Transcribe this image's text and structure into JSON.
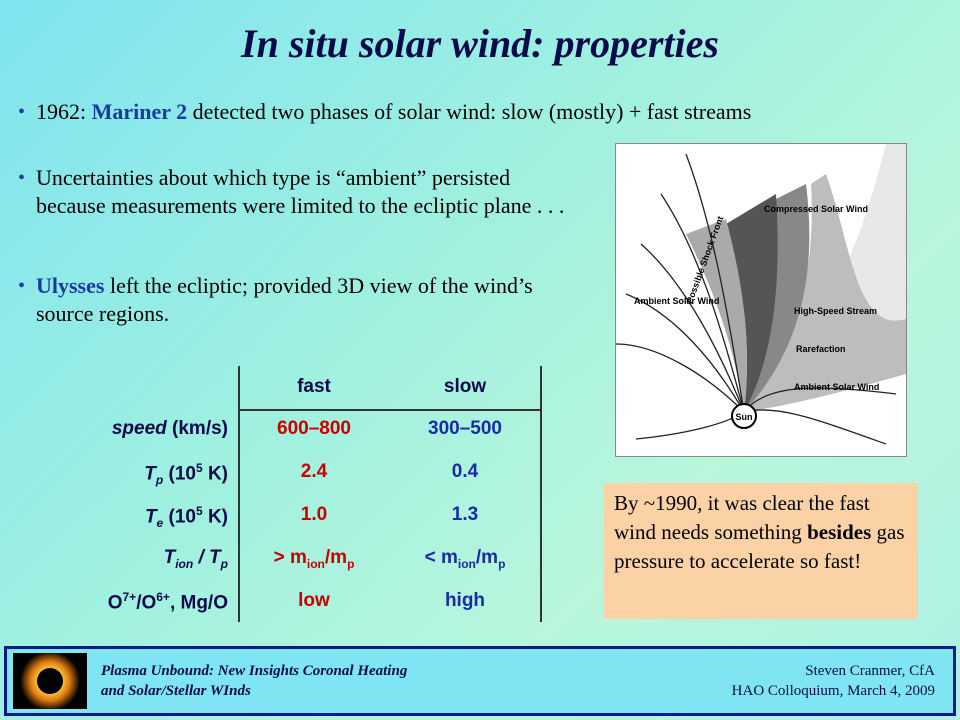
{
  "title": "In situ solar wind: properties",
  "bullets": {
    "b1_pre": "1962: ",
    "b1_highlight": "Mariner 2",
    "b1_post": " detected two phases of solar wind:  slow (mostly) + fast streams",
    "b2": "Uncertainties about which type is “ambient” persisted because measurements were limited to the ecliptic plane . . .",
    "b3_highlight": "Ulysses",
    "b3_post": " left the ecliptic; provided 3D view of the wind’s source regions."
  },
  "table": {
    "col_fast": "fast",
    "col_slow": "slow",
    "rows": [
      {
        "label_main": "speed",
        "label_unit": "  (km/s)",
        "fast": "600–800",
        "slow": "300–500"
      },
      {
        "label_main": "T",
        "label_sub": "p",
        "label_unit": "  (10",
        "label_sup": "5",
        "label_end": " K)",
        "fast": "2.4",
        "slow": "0.4"
      },
      {
        "label_main": "T",
        "label_sub": "e",
        "label_unit": "  (10",
        "label_sup": "5",
        "label_end": " K)",
        "fast": "1.0",
        "slow": "1.3"
      },
      {
        "label_main": "T",
        "label_sub": "ion",
        "label_mid": " / T",
        "label_sub2": "p",
        "fast_pre": "> m",
        "fast_sub": "ion",
        "fast_mid": "/m",
        "fast_sub2": "p",
        "slow_pre": "< m",
        "slow_sub": "ion",
        "slow_mid": "/m",
        "slow_sub2": "p"
      },
      {
        "label_o": "O",
        "label_sup1": "7+",
        "label_mid": "/O",
        "label_sup2": "6+",
        "label_end": ", Mg/O",
        "fast": "low",
        "slow": "high"
      }
    ]
  },
  "figure": {
    "labels": [
      "Compressed Solar Wind",
      "Possible Shock Front",
      "Ambient Solar Wind",
      "High-Speed Stream",
      "Rarefaction",
      "Ambient Solar Wind",
      "Sun"
    ]
  },
  "note": {
    "pre": "By ~1990, it was clear the fast wind needs something ",
    "bold": "besides",
    "post": " gas pressure to accelerate so fast!"
  },
  "footer": {
    "left_line1": "Plasma Unbound:  New Insights Coronal Heating",
    "left_line2": "and Solar/Stellar WInds",
    "right_line1": "Steven Cranmer,  CfA",
    "right_line2": "HAO Colloquium, March 4, 2009"
  }
}
